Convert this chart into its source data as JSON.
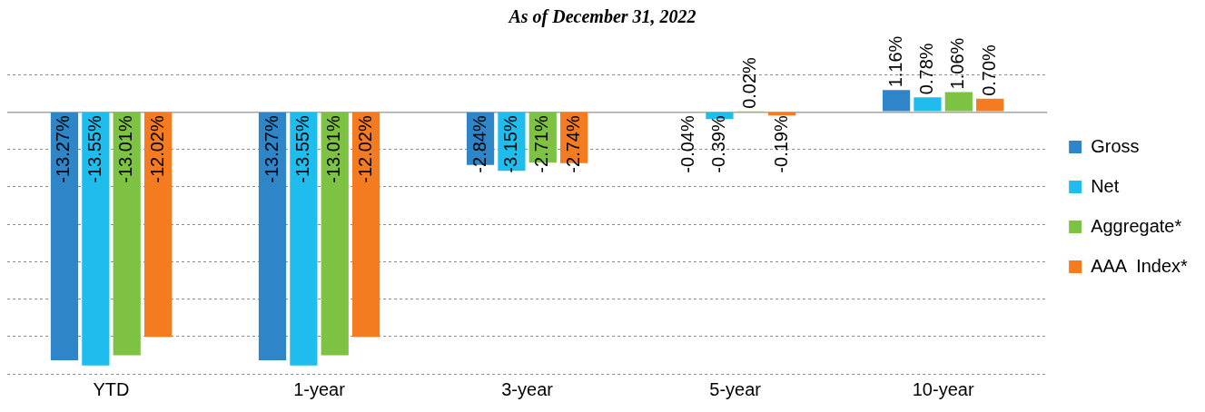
{
  "chart_data": {
    "type": "bar",
    "title": "As of December 31, 2022",
    "categories": [
      "YTD",
      "1-year",
      "3-year",
      "5-year",
      "10-year"
    ],
    "series": [
      {
        "name": "Gross",
        "color": "#2e86c8",
        "values": [
          -13.27,
          -13.27,
          -2.84,
          -0.04,
          1.16
        ],
        "value_labels": [
          "-13.27%",
          "-13.27%",
          "-2.84%",
          "-0.04%",
          "1.16%"
        ]
      },
      {
        "name": "Net",
        "color": "#1fbdee",
        "values": [
          -13.55,
          -13.55,
          -3.15,
          -0.39,
          0.78
        ],
        "value_labels": [
          "-13.55%",
          "-13.55%",
          "-3.15%",
          "-0.39%",
          "0.78%"
        ]
      },
      {
        "name": "Aggregate*",
        "color": "#7dc242",
        "values": [
          -13.01,
          -13.01,
          -2.71,
          0.02,
          1.06
        ],
        "value_labels": [
          "-13.01%",
          "-13.01%",
          "-2.71%",
          "0.02%",
          "1.06%"
        ]
      },
      {
        "name": "AAA  Index*",
        "color": "#f47b20",
        "values": [
          -12.02,
          -12.02,
          -2.74,
          -0.19,
          0.7
        ],
        "value_labels": [
          "-12.02%",
          "-12.02%",
          "-2.74%",
          "-0.19%",
          "0.70%"
        ]
      }
    ],
    "tick_labels": "x",
    "grid": "y",
    "legend": "right"
  }
}
